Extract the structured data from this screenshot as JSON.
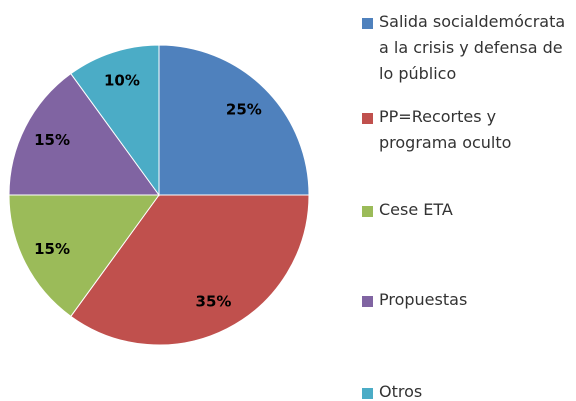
{
  "chart_data": {
    "type": "pie",
    "categories": [
      "Salida socialdemócrata a la crisis y defensa de lo público",
      "PP=Recortes y programa oculto",
      "Cese ETA",
      "Propuestas",
      "Otros"
    ],
    "values": [
      25,
      35,
      15,
      15,
      10
    ],
    "value_labels": [
      "25%",
      "35%",
      "15%",
      "15%",
      "10%"
    ],
    "colors": [
      "#4f81bd",
      "#c0504d",
      "#9bbb59",
      "#8064a2",
      "#4bacc6"
    ],
    "legend": "right"
  }
}
